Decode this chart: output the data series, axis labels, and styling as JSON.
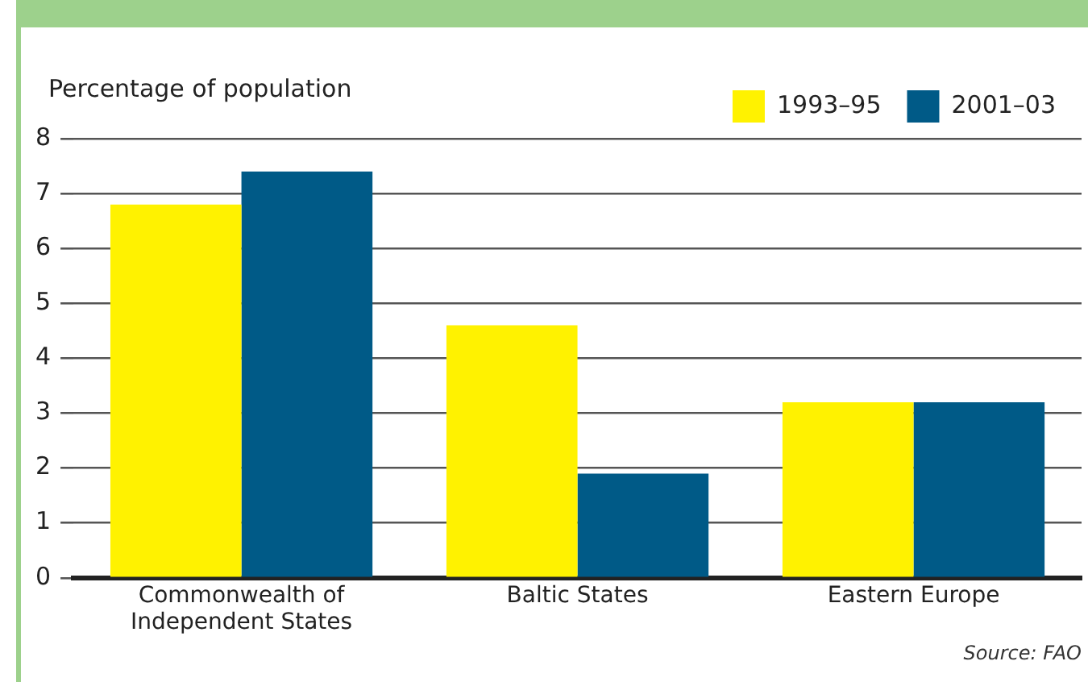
{
  "chart_data": {
    "type": "bar",
    "ylabel": "Percentage of population",
    "categories": [
      "Commonwealth of Independent States",
      "Baltic States",
      "Eastern Europe"
    ],
    "series": [
      {
        "name": "1993–95",
        "color": "#fff200",
        "values": [
          6.8,
          4.6,
          3.2
        ]
      },
      {
        "name": "2001–03",
        "color": "#005a87",
        "values": [
          7.4,
          1.9,
          3.2
        ]
      }
    ],
    "ylim": [
      0,
      8
    ],
    "yticks": [
      0,
      1,
      2,
      3,
      4,
      5,
      6,
      7,
      8
    ],
    "grid": "y",
    "legend": "top right",
    "annotations": [
      "Source: FAO"
    ]
  }
}
